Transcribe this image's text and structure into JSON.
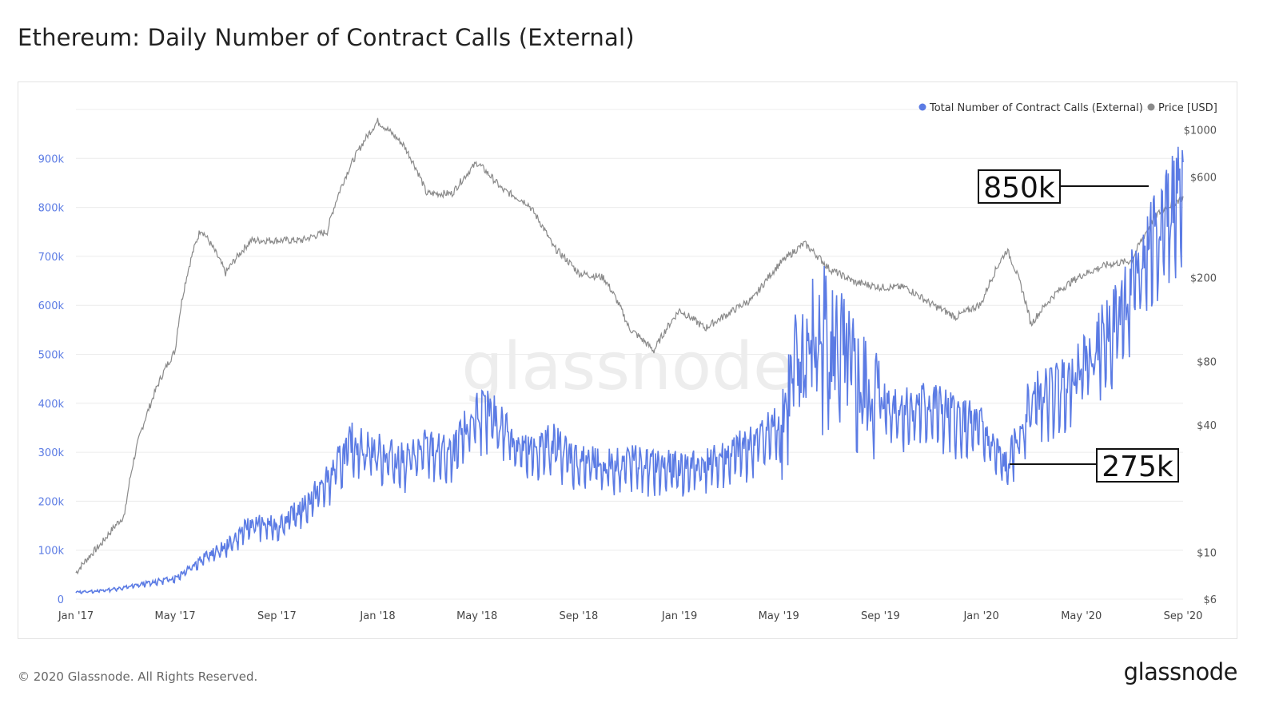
{
  "header": {
    "title": "Ethereum: Daily Number of Contract Calls (External)"
  },
  "footer": {
    "copyright": "© 2020 Glassnode. All Rights Reserved.",
    "brand": "glassnode"
  },
  "watermark": "glassnode",
  "colors": {
    "calls": "#5b7be4",
    "price": "#8a8a8a",
    "grid": "#ececec",
    "left_ticks": "#5b7be4",
    "right_ticks": "#555555"
  },
  "chart_data": {
    "type": "line",
    "title": "Ethereum: Daily Number of Contract Calls (External)",
    "x_ticks": [
      "Jan '17",
      "May '17",
      "Sep '17",
      "Jan '18",
      "May '18",
      "Sep '18",
      "Jan '19",
      "May '19",
      "Sep '19",
      "Jan '20",
      "May '20",
      "Sep '20"
    ],
    "x_range": [
      "2017-01-01",
      "2020-09-01"
    ],
    "y_left": {
      "ticks": [
        "0",
        "100k",
        "200k",
        "300k",
        "400k",
        "500k",
        "600k",
        "700k",
        "800k",
        "900k"
      ],
      "range": [
        0,
        1000000
      ]
    },
    "y_right": {
      "scale": "log",
      "ticks": [
        "$6",
        "$10",
        "$40",
        "$80",
        "$200",
        "$600",
        "$1000"
      ],
      "values": [
        6,
        10,
        40,
        80,
        200,
        600,
        1000
      ]
    },
    "legend": {
      "placement": "top-right"
    },
    "series": [
      {
        "name": "Total Number of Contract Calls (External)",
        "axis": "left",
        "points": [
          [
            "2017-01-01",
            15000
          ],
          [
            "2017-02-01",
            18000
          ],
          [
            "2017-03-01",
            25000
          ],
          [
            "2017-04-01",
            35000
          ],
          [
            "2017-05-01",
            45000
          ],
          [
            "2017-06-01",
            85000
          ],
          [
            "2017-07-01",
            110000
          ],
          [
            "2017-08-01",
            160000
          ],
          [
            "2017-09-01",
            155000
          ],
          [
            "2017-10-01",
            190000
          ],
          [
            "2017-11-01",
            250000
          ],
          [
            "2017-12-01",
            330000
          ],
          [
            "2018-01-01",
            310000
          ],
          [
            "2018-02-01",
            290000
          ],
          [
            "2018-03-01",
            320000
          ],
          [
            "2018-04-01",
            300000
          ],
          [
            "2018-05-01",
            400000
          ],
          [
            "2018-06-01",
            370000
          ],
          [
            "2018-07-01",
            305000
          ],
          [
            "2018-08-01",
            330000
          ],
          [
            "2018-09-01",
            290000
          ],
          [
            "2018-10-01",
            280000
          ],
          [
            "2018-11-01",
            290000
          ],
          [
            "2018-12-01",
            280000
          ],
          [
            "2019-01-01",
            275000
          ],
          [
            "2019-02-01",
            285000
          ],
          [
            "2019-03-01",
            300000
          ],
          [
            "2019-04-01",
            330000
          ],
          [
            "2019-05-01",
            370000
          ],
          [
            "2019-06-01",
            520000
          ],
          [
            "2019-07-01",
            560000
          ],
          [
            "2019-08-01",
            450000
          ],
          [
            "2019-09-01",
            420000
          ],
          [
            "2019-10-01",
            400000
          ],
          [
            "2019-11-01",
            410000
          ],
          [
            "2019-12-01",
            380000
          ],
          [
            "2020-01-01",
            360000
          ],
          [
            "2020-02-01",
            275000
          ],
          [
            "2020-03-01",
            420000
          ],
          [
            "2020-04-01",
            440000
          ],
          [
            "2020-05-01",
            500000
          ],
          [
            "2020-06-01",
            560000
          ],
          [
            "2020-07-01",
            650000
          ],
          [
            "2020-08-01",
            800000
          ],
          [
            "2020-09-01",
            850000
          ]
        ]
      },
      {
        "name": "Price [USD]",
        "axis": "right",
        "points": [
          [
            "2017-01-01",
            8
          ],
          [
            "2017-02-01",
            11
          ],
          [
            "2017-03-01",
            15
          ],
          [
            "2017-04-01",
            50
          ],
          [
            "2017-05-01",
            90
          ],
          [
            "2017-06-01",
            340
          ],
          [
            "2017-07-01",
            210
          ],
          [
            "2017-08-01",
            300
          ],
          [
            "2017-09-01",
            300
          ],
          [
            "2017-10-01",
            300
          ],
          [
            "2017-11-01",
            330
          ],
          [
            "2017-12-01",
            700
          ],
          [
            "2018-01-01",
            1100
          ],
          [
            "2018-02-01",
            850
          ],
          [
            "2018-03-01",
            500
          ],
          [
            "2018-04-01",
            500
          ],
          [
            "2018-05-01",
            700
          ],
          [
            "2018-06-01",
            520
          ],
          [
            "2018-07-01",
            450
          ],
          [
            "2018-08-01",
            280
          ],
          [
            "2018-09-01",
            210
          ],
          [
            "2018-10-01",
            200
          ],
          [
            "2018-11-01",
            115
          ],
          [
            "2018-12-01",
            90
          ],
          [
            "2019-01-01",
            140
          ],
          [
            "2019-02-01",
            115
          ],
          [
            "2019-03-01",
            135
          ],
          [
            "2019-04-01",
            160
          ],
          [
            "2019-05-01",
            230
          ],
          [
            "2019-06-01",
            290
          ],
          [
            "2019-07-01",
            220
          ],
          [
            "2019-08-01",
            190
          ],
          [
            "2019-09-01",
            180
          ],
          [
            "2019-10-01",
            180
          ],
          [
            "2019-11-01",
            150
          ],
          [
            "2019-12-01",
            130
          ],
          [
            "2020-01-01",
            150
          ],
          [
            "2020-02-01",
            270
          ],
          [
            "2020-03-01",
            120
          ],
          [
            "2020-04-01",
            170
          ],
          [
            "2020-05-01",
            205
          ],
          [
            "2020-06-01",
            230
          ],
          [
            "2020-07-01",
            240
          ],
          [
            "2020-08-01",
            400
          ],
          [
            "2020-09-01",
            480
          ]
        ]
      }
    ],
    "annotations": [
      {
        "label": "850k",
        "x": "2020-08-15",
        "y": 850000
      },
      {
        "label": "275k",
        "x": "2020-02-10",
        "y": 275000
      }
    ]
  }
}
